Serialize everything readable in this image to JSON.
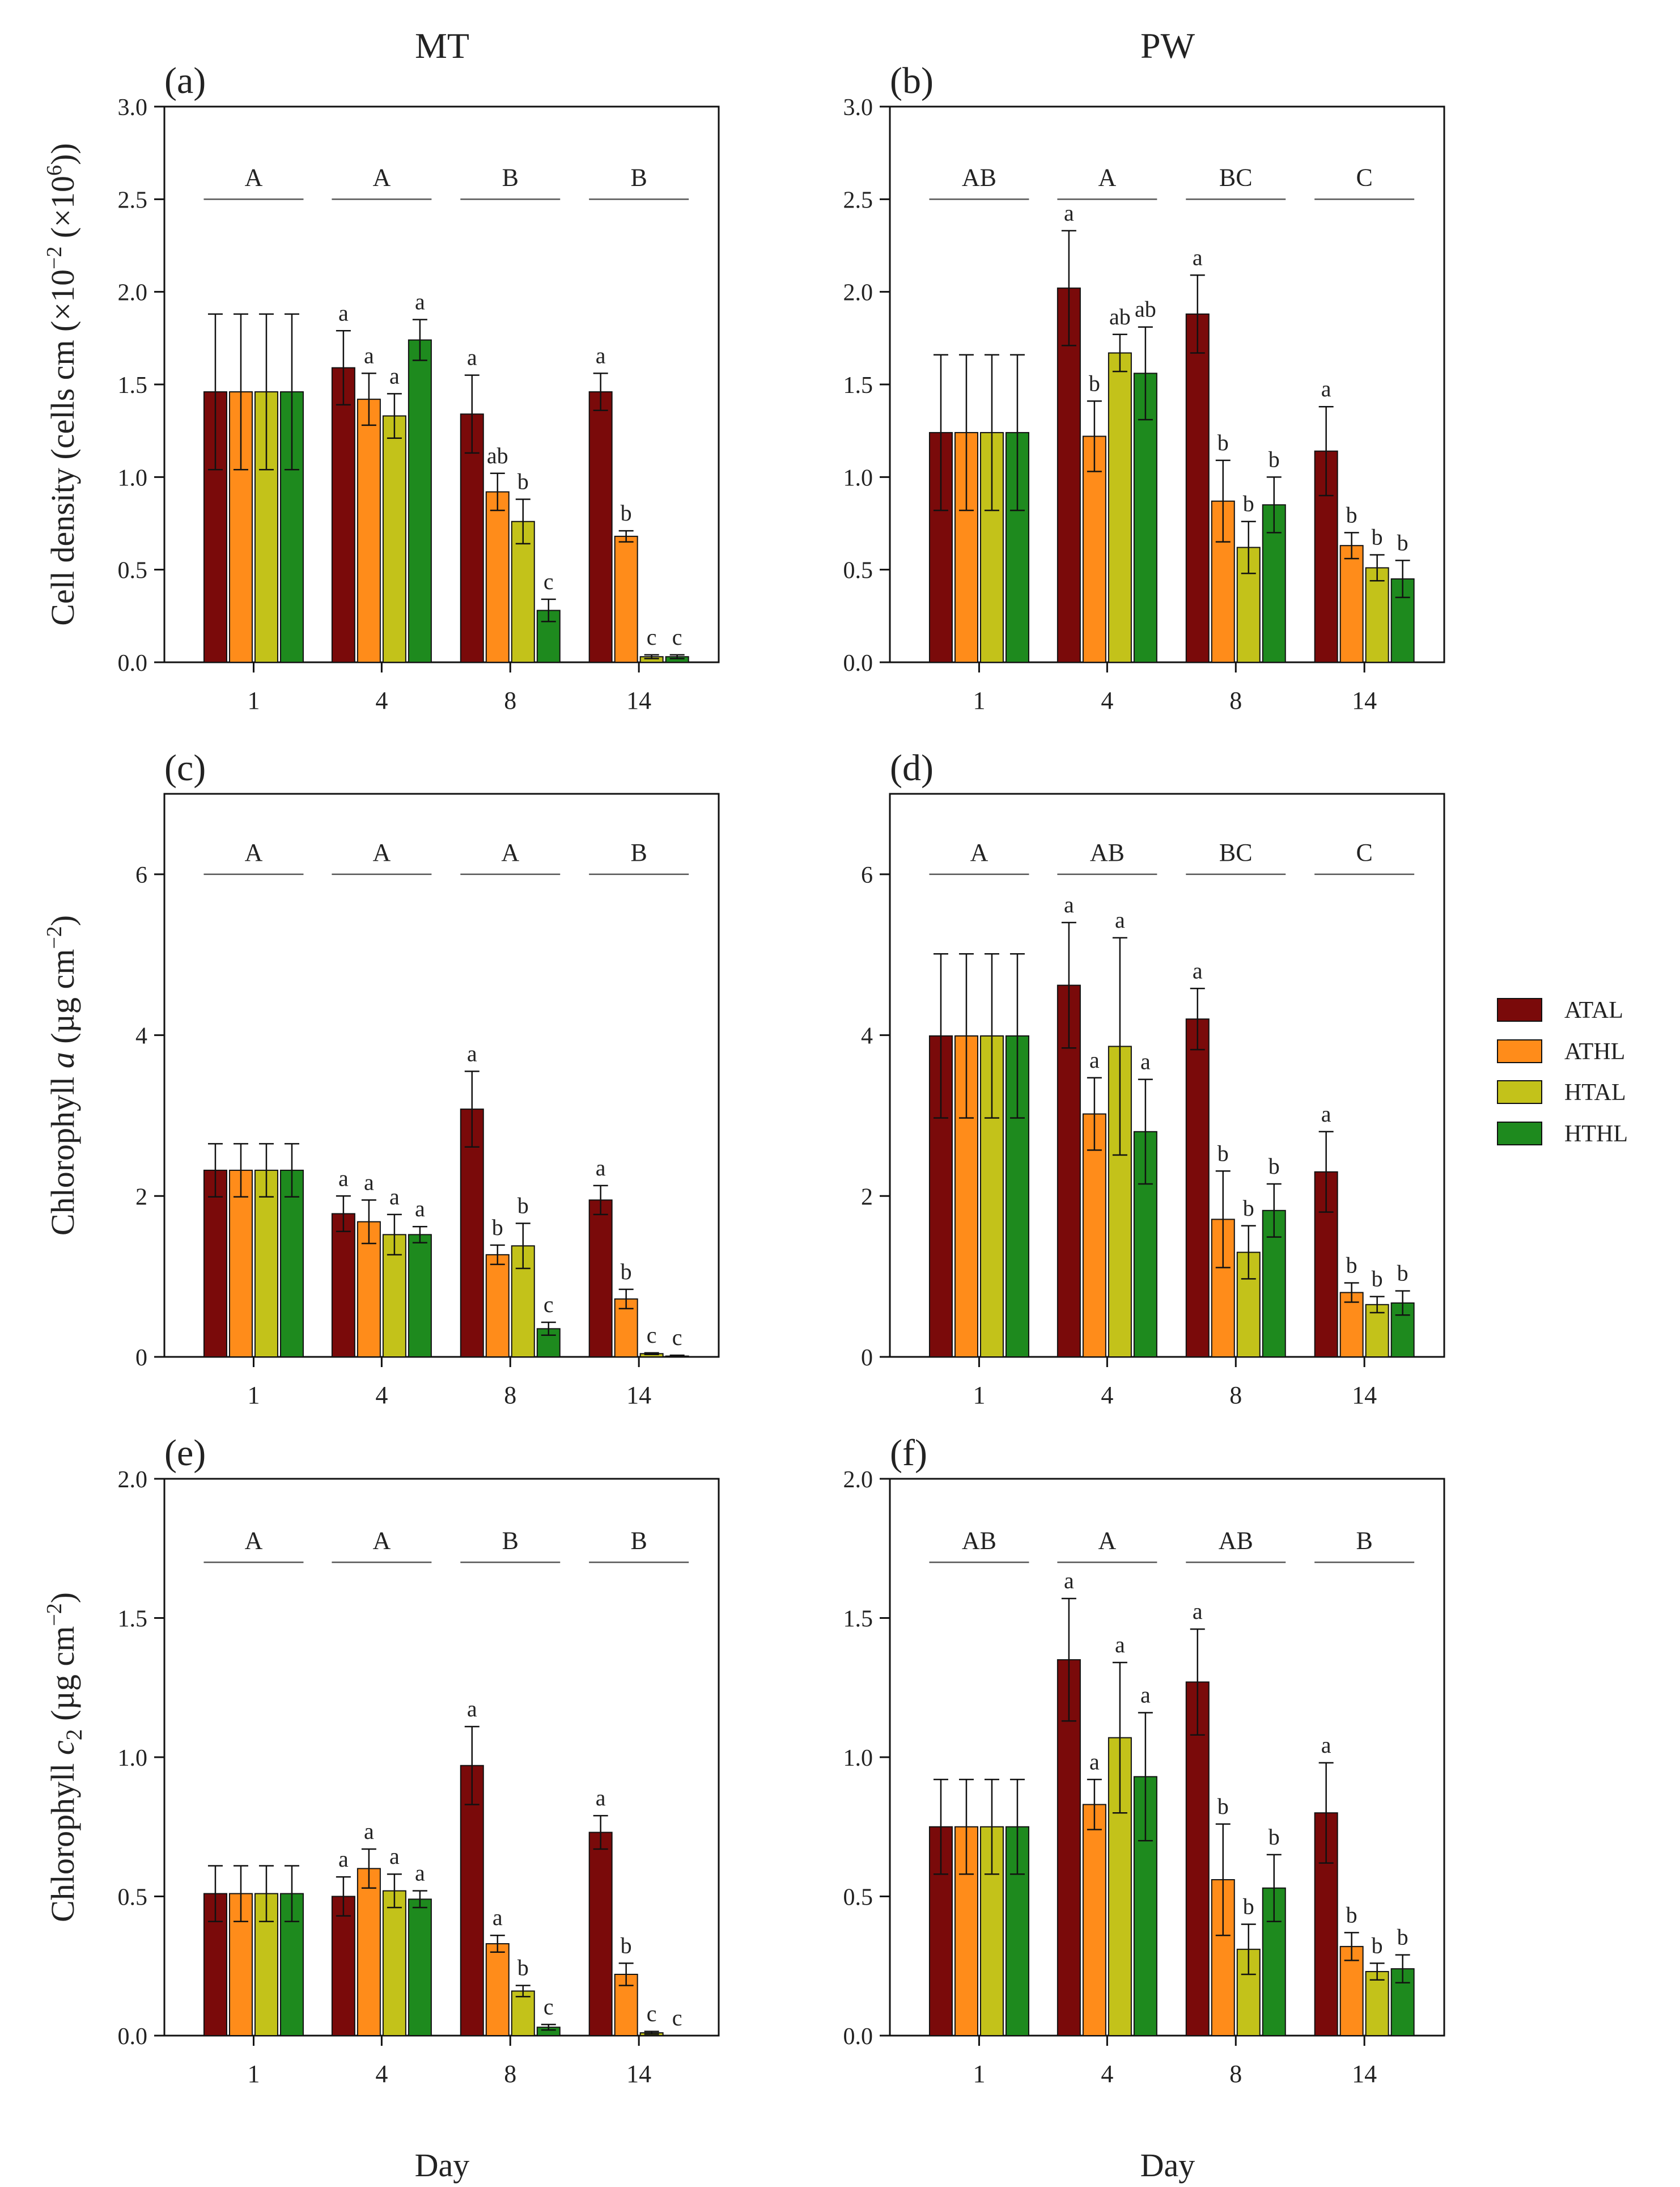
{
  "figure": {
    "col_titles": [
      "MT",
      "PW"
    ],
    "xlabel": "Day",
    "legend": [
      {
        "label": "ATAL",
        "color": "#7a0a0a"
      },
      {
        "label": "ATHL",
        "color": "#ff8c1a"
      },
      {
        "label": "HTAL",
        "color": "#c3c21a"
      },
      {
        "label": "HTHL",
        "color": "#1e8a1e"
      }
    ]
  },
  "chart_data": [
    {
      "type": "bar",
      "panel": "(a)",
      "column_title": "MT",
      "ylabel": {
        "main": "Cell density (cells cm",
        "sup1": "−2",
        "mid": " (×10",
        "sup2": "6",
        "end": "))"
      },
      "ylim": [
        0,
        3.0
      ],
      "yticks": [
        0.0,
        0.5,
        1.0,
        1.5,
        2.0,
        2.5,
        3.0
      ],
      "ytick_decimals": 1,
      "categories": [
        "1",
        "4",
        "8",
        "14"
      ],
      "series": [
        {
          "name": "ATAL",
          "values": [
            1.46,
            1.59,
            1.34,
            1.46
          ],
          "errors": [
            0.42,
            0.2,
            0.21,
            0.1
          ]
        },
        {
          "name": "ATHL",
          "values": [
            1.46,
            1.42,
            0.92,
            0.68
          ],
          "errors": [
            0.42,
            0.14,
            0.1,
            0.03
          ]
        },
        {
          "name": "HTAL",
          "values": [
            1.46,
            1.33,
            0.76,
            0.03
          ],
          "errors": [
            0.42,
            0.12,
            0.12,
            0.01
          ]
        },
        {
          "name": "HTHL",
          "values": [
            1.46,
            1.74,
            0.28,
            0.03
          ],
          "errors": [
            0.42,
            0.11,
            0.06,
            0.01
          ]
        }
      ],
      "letters": [
        [
          "",
          "",
          "",
          ""
        ],
        [
          "a",
          "a",
          "a",
          "a"
        ],
        [
          "a",
          "ab",
          "b",
          "c"
        ],
        [
          "a",
          "b",
          "c",
          "c"
        ]
      ],
      "group_letters": [
        "A",
        "A",
        "B",
        "B"
      ],
      "group_letter_y": 2.5
    },
    {
      "type": "bar",
      "panel": "(b)",
      "column_title": "PW",
      "ylim": [
        0,
        3.0
      ],
      "yticks": [
        0.0,
        0.5,
        1.0,
        1.5,
        2.0,
        2.5,
        3.0
      ],
      "ytick_decimals": 1,
      "categories": [
        "1",
        "4",
        "8",
        "14"
      ],
      "series": [
        {
          "name": "ATAL",
          "values": [
            1.24,
            2.02,
            1.88,
            1.14
          ],
          "errors": [
            0.42,
            0.31,
            0.21,
            0.24
          ]
        },
        {
          "name": "ATHL",
          "values": [
            1.24,
            1.22,
            0.87,
            0.63
          ],
          "errors": [
            0.42,
            0.19,
            0.22,
            0.07
          ]
        },
        {
          "name": "HTAL",
          "values": [
            1.24,
            1.67,
            0.62,
            0.51
          ],
          "errors": [
            0.42,
            0.1,
            0.14,
            0.07
          ]
        },
        {
          "name": "HTHL",
          "values": [
            1.24,
            1.56,
            0.85,
            0.45
          ],
          "errors": [
            0.42,
            0.25,
            0.15,
            0.1
          ]
        }
      ],
      "letters": [
        [
          "",
          "",
          "",
          ""
        ],
        [
          "a",
          "b",
          "ab",
          "ab"
        ],
        [
          "a",
          "b",
          "b",
          "b"
        ],
        [
          "a",
          "b",
          "b",
          "b"
        ]
      ],
      "group_letters": [
        "AB",
        "A",
        "BC",
        "C"
      ],
      "group_letter_y": 2.5
    },
    {
      "type": "bar",
      "panel": "(c)",
      "ylabel": {
        "main": "Chlorophyll ",
        "ital": "a",
        "mid": " (µg cm",
        "sup1": "−2",
        "end": ")"
      },
      "ylim": [
        0,
        7
      ],
      "yticks": [
        0,
        2,
        4,
        6
      ],
      "ytick_decimals": 0,
      "categories": [
        "1",
        "4",
        "8",
        "14"
      ],
      "series": [
        {
          "name": "ATAL",
          "values": [
            2.32,
            1.78,
            3.08,
            1.95
          ],
          "errors": [
            0.33,
            0.22,
            0.47,
            0.18
          ]
        },
        {
          "name": "ATHL",
          "values": [
            2.32,
            1.68,
            1.27,
            0.72
          ],
          "errors": [
            0.33,
            0.27,
            0.12,
            0.12
          ]
        },
        {
          "name": "HTAL",
          "values": [
            2.32,
            1.52,
            1.38,
            0.04
          ],
          "errors": [
            0.33,
            0.25,
            0.28,
            0.01
          ]
        },
        {
          "name": "HTHL",
          "values": [
            2.32,
            1.52,
            0.35,
            0.01
          ],
          "errors": [
            0.33,
            0.1,
            0.08,
            0.01
          ]
        }
      ],
      "letters": [
        [
          "",
          "",
          "",
          ""
        ],
        [
          "a",
          "a",
          "a",
          "a"
        ],
        [
          "a",
          "b",
          "b",
          "c"
        ],
        [
          "a",
          "b",
          "c",
          "c"
        ]
      ],
      "group_letters": [
        "A",
        "A",
        "A",
        "B"
      ],
      "group_letter_y": 6.0
    },
    {
      "type": "bar",
      "panel": "(d)",
      "ylim": [
        0,
        7
      ],
      "yticks": [
        0,
        2,
        4,
        6
      ],
      "ytick_decimals": 0,
      "categories": [
        "1",
        "4",
        "8",
        "14"
      ],
      "series": [
        {
          "name": "ATAL",
          "values": [
            3.99,
            4.62,
            4.2,
            2.3
          ],
          "errors": [
            1.02,
            0.78,
            0.38,
            0.5
          ]
        },
        {
          "name": "ATHL",
          "values": [
            3.99,
            3.02,
            1.71,
            0.8
          ],
          "errors": [
            1.02,
            0.45,
            0.6,
            0.12
          ]
        },
        {
          "name": "HTAL",
          "values": [
            3.99,
            3.86,
            1.3,
            0.65
          ],
          "errors": [
            1.02,
            1.35,
            0.33,
            0.1
          ]
        },
        {
          "name": "HTHL",
          "values": [
            3.99,
            2.8,
            1.82,
            0.67
          ],
          "errors": [
            1.02,
            0.65,
            0.33,
            0.15
          ]
        }
      ],
      "letters": [
        [
          "",
          "",
          "",
          ""
        ],
        [
          "a",
          "a",
          "a",
          "a"
        ],
        [
          "a",
          "b",
          "b",
          "b"
        ],
        [
          "a",
          "b",
          "b",
          "b"
        ]
      ],
      "group_letters": [
        "A",
        "AB",
        "BC",
        "C"
      ],
      "group_letter_y": 6.0
    },
    {
      "type": "bar",
      "panel": "(e)",
      "ylabel": {
        "main": "Chlorophyll ",
        "ital": "c",
        "sub": "2",
        "mid": " (µg cm",
        "sup1": "−2",
        "end": ")"
      },
      "ylim": [
        0,
        2.0
      ],
      "yticks": [
        0.0,
        0.5,
        1.0,
        1.5,
        2.0
      ],
      "ytick_decimals": 1,
      "categories": [
        "1",
        "4",
        "8",
        "14"
      ],
      "series": [
        {
          "name": "ATAL",
          "values": [
            0.51,
            0.5,
            0.97,
            0.73
          ],
          "errors": [
            0.1,
            0.07,
            0.14,
            0.06
          ]
        },
        {
          "name": "ATHL",
          "values": [
            0.51,
            0.6,
            0.33,
            0.22
          ],
          "errors": [
            0.1,
            0.07,
            0.03,
            0.04
          ]
        },
        {
          "name": "HTAL",
          "values": [
            0.51,
            0.52,
            0.16,
            0.01
          ],
          "errors": [
            0.1,
            0.06,
            0.02,
            0.005
          ]
        },
        {
          "name": "HTHL",
          "values": [
            0.51,
            0.49,
            0.03,
            0.0
          ],
          "errors": [
            0.1,
            0.03,
            0.01,
            0.0
          ]
        }
      ],
      "letters": [
        [
          "",
          "",
          "",
          ""
        ],
        [
          "a",
          "a",
          "a",
          "a"
        ],
        [
          "a",
          "a",
          "b",
          "c"
        ],
        [
          "a",
          "b",
          "c",
          "c"
        ]
      ],
      "group_letters": [
        "A",
        "A",
        "B",
        "B"
      ],
      "group_letter_y": 1.7
    },
    {
      "type": "bar",
      "panel": "(f)",
      "ylim": [
        0,
        2.0
      ],
      "yticks": [
        0.0,
        0.5,
        1.0,
        1.5,
        2.0
      ],
      "ytick_decimals": 1,
      "categories": [
        "1",
        "4",
        "8",
        "14"
      ],
      "series": [
        {
          "name": "ATAL",
          "values": [
            0.75,
            1.35,
            1.27,
            0.8
          ],
          "errors": [
            0.17,
            0.22,
            0.19,
            0.18
          ]
        },
        {
          "name": "ATHL",
          "values": [
            0.75,
            0.83,
            0.56,
            0.32
          ],
          "errors": [
            0.17,
            0.09,
            0.2,
            0.05
          ]
        },
        {
          "name": "HTAL",
          "values": [
            0.75,
            1.07,
            0.31,
            0.23
          ],
          "errors": [
            0.17,
            0.27,
            0.09,
            0.03
          ]
        },
        {
          "name": "HTHL",
          "values": [
            0.75,
            0.93,
            0.53,
            0.24
          ],
          "errors": [
            0.17,
            0.23,
            0.12,
            0.05
          ]
        }
      ],
      "letters": [
        [
          "",
          "",
          "",
          ""
        ],
        [
          "a",
          "a",
          "a",
          "a"
        ],
        [
          "a",
          "b",
          "b",
          "b"
        ],
        [
          "a",
          "b",
          "b",
          "b"
        ]
      ],
      "group_letters": [
        "AB",
        "A",
        "AB",
        "B"
      ],
      "group_letter_y": 1.7
    }
  ]
}
